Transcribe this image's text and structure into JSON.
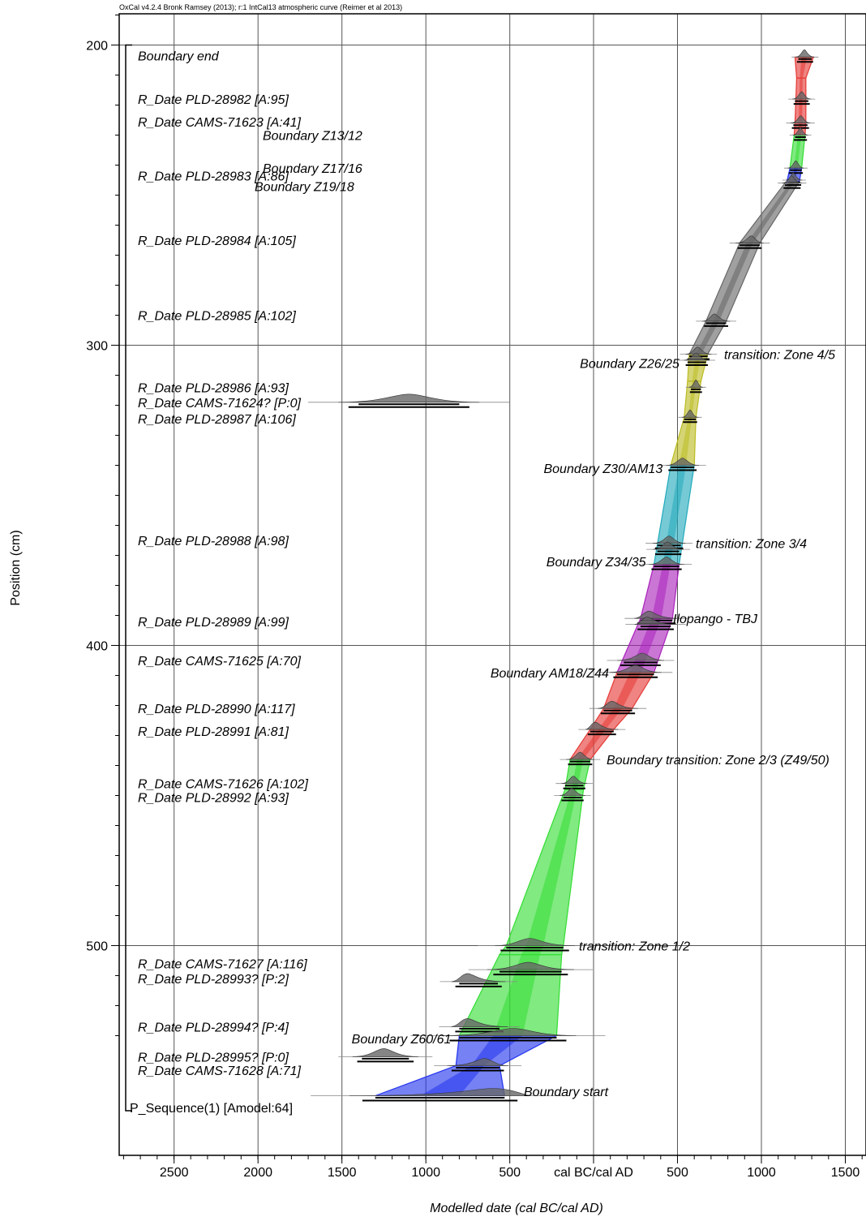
{
  "chart_data": {
    "type": "age-depth-model",
    "credit": "OxCal v4.2.4 Bronk Ramsey (2013); r:1 IntCal13 atmospheric curve (Reimer et al 2013)",
    "xlabel": "Modelled date (cal BC/cal AD)",
    "ylabel": "Position (cm)",
    "x_ticks": [
      {
        "value": -2499,
        "label": "2500"
      },
      {
        "value": -1999,
        "label": "2000"
      },
      {
        "value": -1499,
        "label": "1500"
      },
      {
        "value": -999,
        "label": "1000"
      },
      {
        "value": -499,
        "label": "500"
      },
      {
        "value": 0,
        "label": "cal BC/cal AD"
      },
      {
        "value": 500,
        "label": "500"
      },
      {
        "value": 1000,
        "label": "1000"
      },
      {
        "value": 1500,
        "label": "1500"
      }
    ],
    "y_ticks": [
      200,
      300,
      400,
      500
    ],
    "ylim": [
      190,
      535
    ],
    "xlim": [
      -2850,
      1600
    ],
    "envelope": [
      {
        "depth": 204,
        "lo": 1200,
        "hi": 1310,
        "color": "#e53935"
      },
      {
        "depth": 211,
        "lo": 1210,
        "hi": 1265,
        "color": "#e53935"
      },
      {
        "depth": 226,
        "lo": 1200,
        "hi": 1265,
        "color": "#e53935"
      },
      {
        "depth": 230,
        "lo": 1195,
        "hi": 1260,
        "color": "#e53935"
      },
      {
        "depth": 230,
        "lo": 1195,
        "hi": 1260,
        "color": "#33dd33"
      },
      {
        "depth": 241,
        "lo": 1170,
        "hi": 1240,
        "color": "#33dd33"
      },
      {
        "depth": 241,
        "lo": 1170,
        "hi": 1240,
        "color": "#2233ee"
      },
      {
        "depth": 246,
        "lo": 1150,
        "hi": 1225,
        "color": "#2233ee"
      },
      {
        "depth": 246,
        "lo": 1140,
        "hi": 1220,
        "color": "#666666"
      },
      {
        "depth": 266,
        "lo": 870,
        "hi": 990,
        "color": "#666666"
      },
      {
        "depth": 292,
        "lo": 670,
        "hi": 790,
        "color": "#666666"
      },
      {
        "depth": 303,
        "lo": 570,
        "hi": 680,
        "color": "#666666"
      },
      {
        "depth": 303,
        "lo": 570,
        "hi": 680,
        "color": "#bbbb22"
      },
      {
        "depth": 312,
        "lo": 560,
        "hi": 640,
        "color": "#bbbb22"
      },
      {
        "depth": 324,
        "lo": 540,
        "hi": 610,
        "color": "#bbbb22"
      },
      {
        "depth": 340,
        "lo": 460,
        "hi": 600,
        "color": "#bbbb22"
      },
      {
        "depth": 340,
        "lo": 460,
        "hi": 600,
        "color": "#22aabb"
      },
      {
        "depth": 373,
        "lo": 360,
        "hi": 510,
        "color": "#22aabb"
      },
      {
        "depth": 373,
        "lo": 360,
        "hi": 510,
        "color": "#aa22bb"
      },
      {
        "depth": 391,
        "lo": 280,
        "hi": 470,
        "color": "#aa22bb"
      },
      {
        "depth": 409,
        "lo": 140,
        "hi": 360,
        "color": "#aa22bb"
      },
      {
        "depth": 409,
        "lo": 140,
        "hi": 360,
        "color": "#e53935"
      },
      {
        "depth": 421,
        "lo": 60,
        "hi": 230,
        "color": "#e53935"
      },
      {
        "depth": 428,
        "lo": -20,
        "hi": 120,
        "color": "#e53935"
      },
      {
        "depth": 438,
        "lo": -140,
        "hi": -20,
        "color": "#e53935"
      },
      {
        "depth": 438,
        "lo": -140,
        "hi": -20,
        "color": "#33dd33"
      },
      {
        "depth": 448,
        "lo": -170,
        "hi": -60,
        "color": "#33dd33"
      },
      {
        "depth": 500,
        "lo": -520,
        "hi": -180,
        "color": "#33dd33"
      },
      {
        "depth": 503,
        "lo": -560,
        "hi": -190,
        "color": "#33dd33"
      },
      {
        "depth": 530,
        "lo": -800,
        "hi": -220,
        "color": "#33dd33"
      },
      {
        "depth": 530,
        "lo": -800,
        "hi": -220,
        "color": "#2233ee"
      },
      {
        "depth": 540,
        "lo": -820,
        "hi": -560,
        "color": "#2233ee"
      },
      {
        "depth": 550,
        "lo": -1300,
        "hi": -530,
        "color": "#2233ee"
      }
    ],
    "samples": [
      {
        "label": "Boundary end",
        "label_depth": 203.5,
        "depth": 204,
        "mode": 1256,
        "lo": 1220,
        "hi": 1300,
        "side": "left"
      },
      {
        "label": "R_Date PLD-28982 [A:95]",
        "label_depth": 218,
        "depth": 218,
        "mode": 1240,
        "lo": 1200,
        "hi": 1280,
        "side": "left"
      },
      {
        "label": "R_Date CAMS-71623 [A:41]",
        "label_depth": 225.5,
        "depth": 226,
        "mode": 1235,
        "lo": 1190,
        "hi": 1275,
        "side": "left"
      },
      {
        "label": "Boundary Z13/12",
        "label_depth": 230,
        "depth": 230,
        "mode": 1232,
        "lo": 1200,
        "hi": 1265,
        "side": "right",
        "label_x": 324
      },
      {
        "label": "Boundary Z17/16",
        "label_depth": 241,
        "depth": 241,
        "mode": 1205,
        "lo": 1170,
        "hi": 1240,
        "side": "right",
        "label_x": 324
      },
      {
        "label": "R_Date PLD-28983 [A:86]",
        "label_depth": 243.5,
        "depth": 245,
        "mode": 1190,
        "lo": 1160,
        "hi": 1230,
        "side": "left"
      },
      {
        "label": "Boundary Z19/18",
        "label_depth": 247,
        "depth": 246,
        "mode": 1180,
        "lo": 1140,
        "hi": 1225,
        "side": "right",
        "label_x": 314
      },
      {
        "label": "R_Date PLD-28984 [A:105]",
        "label_depth": 265,
        "depth": 266,
        "mode": 940,
        "lo": 870,
        "hi": 990,
        "side": "left"
      },
      {
        "label": "R_Date PLD-28985 [A:102]",
        "label_depth": 290,
        "depth": 292,
        "mode": 720,
        "lo": 670,
        "hi": 790,
        "side": "left"
      },
      {
        "label": "transition: Zone 4/5",
        "label_depth": 303,
        "depth": 303,
        "mode": 620,
        "lo": 570,
        "hi": 680,
        "side": "right",
        "label_x": 893
      },
      {
        "label": "Boundary Z26/25",
        "label_depth": 306,
        "depth": 305,
        "mode": 610,
        "lo": 560,
        "hi": 670,
        "side": "right",
        "label_x": -0.5
      },
      {
        "label": "R_Date PLD-28986 [A:93]",
        "label_depth": 314,
        "depth": 314,
        "mode": 610,
        "lo": 580,
        "hi": 640,
        "side": "left"
      },
      {
        "label": "R_Date CAMS-71624? [P:0]",
        "label_depth": 319,
        "depth": 319,
        "mode": -1100,
        "lo": -1400,
        "hi": -800,
        "side": "left",
        "outlier": true
      },
      {
        "label": "R_Date PLD-28987 [A:106]",
        "label_depth": 324.5,
        "depth": 324,
        "mode": 575,
        "lo": 540,
        "hi": 610,
        "side": "left"
      },
      {
        "label": "Boundary Z30/AM13",
        "label_depth": 341,
        "depth": 340,
        "mode": 530,
        "lo": 460,
        "hi": 600,
        "side": "right",
        "label_x": -0.5
      },
      {
        "label": "transition: Zone 3/4",
        "label_depth": 366,
        "depth": 366,
        "mode": 450,
        "lo": 380,
        "hi": 520,
        "side": "right",
        "label_x": 858
      },
      {
        "label": "R_Date PLD-28988 [A:98]",
        "label_depth": 365,
        "depth": 368,
        "mode": 440,
        "lo": 380,
        "hi": 510,
        "side": "left"
      },
      {
        "label": "Boundary Z34/35",
        "label_depth": 372,
        "depth": 373,
        "mode": 435,
        "lo": 360,
        "hi": 510,
        "side": "right",
        "label_x": -0.5
      },
      {
        "label": "Ilopango - TBJ",
        "label_depth": 391,
        "depth": 391,
        "mode": 330,
        "lo": 280,
        "hi": 470,
        "side": "right",
        "label_x": 830
      },
      {
        "label": "R_Date PLD-28989 [A:99]",
        "label_depth": 392,
        "depth": 393,
        "mode": 320,
        "lo": 280,
        "hi": 460,
        "side": "left"
      },
      {
        "label": "R_Date CAMS-71625 [A:70]",
        "label_depth": 405,
        "depth": 405,
        "mode": 290,
        "lo": 180,
        "hi": 380,
        "side": "left"
      },
      {
        "label": "Boundary AM18/Z44",
        "label_depth": 409,
        "depth": 409,
        "mode": 250,
        "lo": 140,
        "hi": 360,
        "side": "right",
        "label_x": -0.5
      },
      {
        "label": "R_Date PLD-28990 [A:117]",
        "label_depth": 421,
        "depth": 421,
        "mode": 110,
        "lo": 60,
        "hi": 230,
        "side": "left"
      },
      {
        "label": "R_Date PLD-28991 [A:81]",
        "label_depth": 428.5,
        "depth": 428,
        "mode": 10,
        "lo": -20,
        "hi": 120,
        "side": "left"
      },
      {
        "label": "Boundary transition: Zone 2/3 (Z49/50)",
        "label_depth": 438,
        "depth": 438,
        "mode": -80,
        "lo": -140,
        "hi": -20,
        "side": "right",
        "label_x": 748
      },
      {
        "label": "R_Date CAMS-71626 [A:102]",
        "label_depth": 446,
        "depth": 446,
        "mode": -120,
        "lo": -170,
        "hi": -60,
        "side": "left"
      },
      {
        "label": "R_Date PLD-28992 [A:93]",
        "label_depth": 450.5,
        "depth": 450,
        "mode": -130,
        "lo": -180,
        "hi": -70,
        "side": "left"
      },
      {
        "label": "transition: Zone 1/2",
        "label_depth": 500,
        "depth": 500,
        "mode": -380,
        "lo": -520,
        "hi": -180,
        "side": "right",
        "label_x": 714
      },
      {
        "label": "R_Date CAMS-71627 [A:116]",
        "label_depth": 506,
        "depth": 508,
        "mode": -390,
        "lo": -560,
        "hi": -190,
        "side": "left"
      },
      {
        "label": "R_Date PLD-28993? [P:2]",
        "label_depth": 511,
        "depth": 512,
        "mode": -750,
        "lo": -800,
        "hi": -570,
        "side": "left",
        "outlier": true
      },
      {
        "label": "R_Date PLD-28994? [P:4]",
        "label_depth": 527,
        "depth": 527,
        "mode": -750,
        "lo": -800,
        "hi": -560,
        "side": "left",
        "outlier": true
      },
      {
        "label": "Boundary Z60/61",
        "label_depth": 531,
        "depth": 530,
        "mode": -480,
        "lo": -800,
        "hi": -220,
        "side": "right",
        "label_x": -0.5
      },
      {
        "label": "R_Date PLD-28995? [P:0]",
        "label_depth": 537,
        "depth": 537,
        "mode": -1250,
        "lo": -1380,
        "hi": -1100,
        "side": "left",
        "outlier": true
      },
      {
        "label": "R_Date CAMS-71628 [A:71]",
        "label_depth": 541.5,
        "depth": 540,
        "mode": -650,
        "lo": -820,
        "hi": -560,
        "side": "left"
      },
      {
        "label": "Boundary start",
        "label_depth": 548.5,
        "depth": 550,
        "mode": -600,
        "lo": -1300,
        "hi": -530,
        "side": "right",
        "label_x": 646
      }
    ],
    "sequence_label": "P_Sequence(1) [Amodel:64]",
    "grid": true
  }
}
